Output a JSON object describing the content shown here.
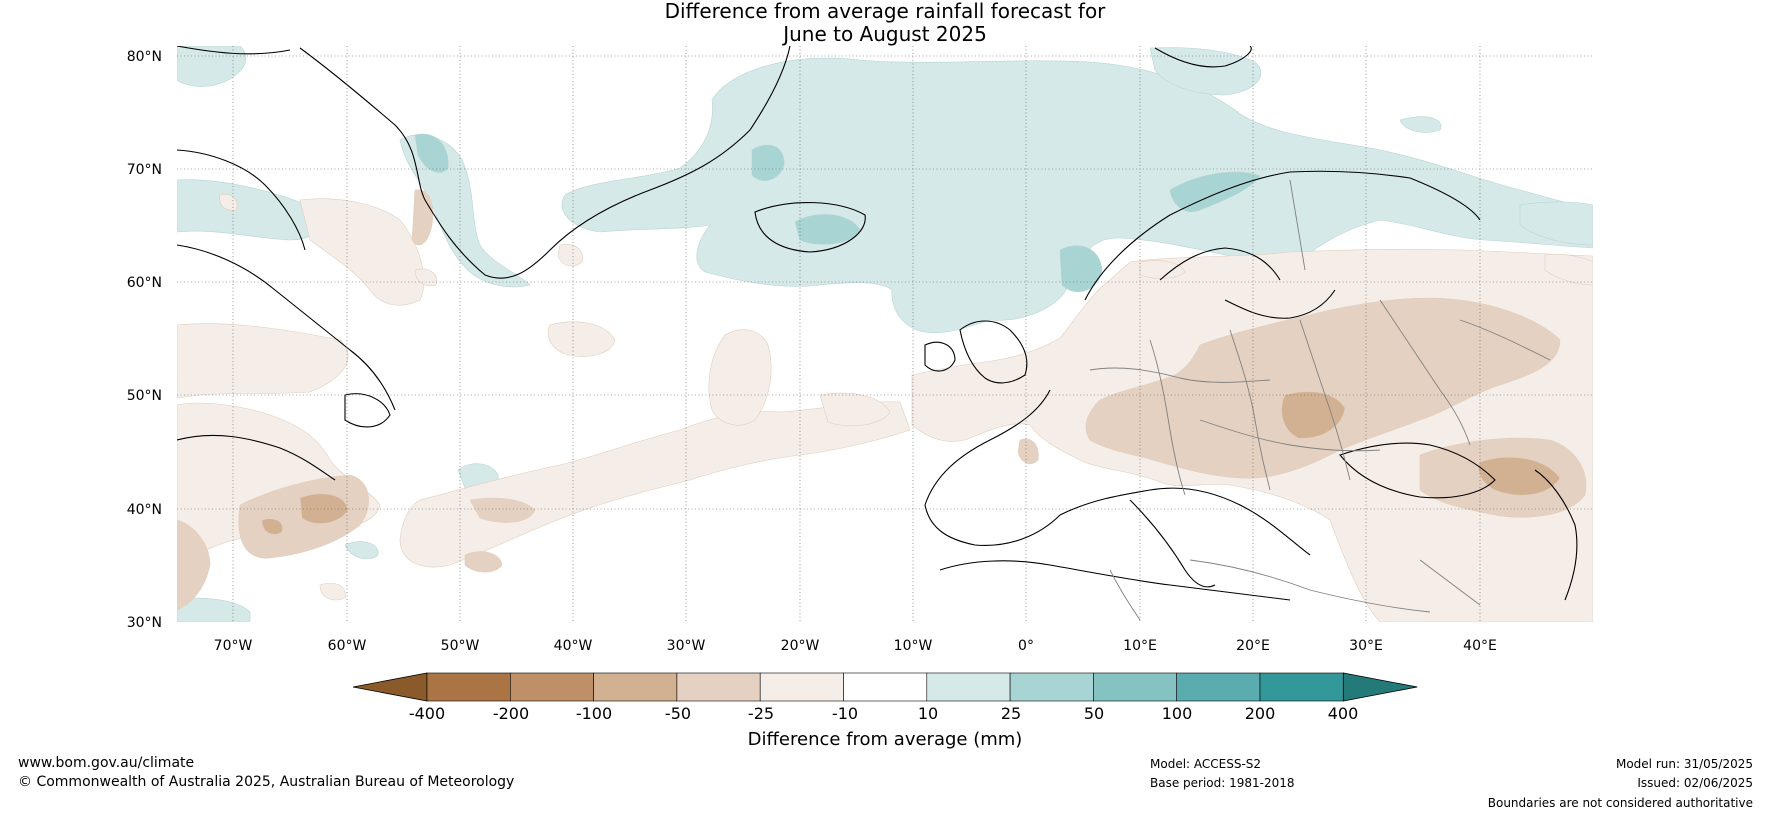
{
  "title": {
    "line1": "Difference from average rainfall forecast for",
    "line2": "June to August 2025"
  },
  "map": {
    "lat_labels": [
      "80°N",
      "70°N",
      "60°N",
      "50°N",
      "40°N",
      "30°N"
    ],
    "lon_labels": [
      "70°W",
      "60°W",
      "50°W",
      "40°W",
      "30°W",
      "20°W",
      "10°W",
      "0°",
      "10°E",
      "20°E",
      "30°E",
      "40°E"
    ],
    "extent": {
      "lon": [
        -75,
        50
      ],
      "lat": [
        30,
        81
      ]
    },
    "coastline_color": "#000000",
    "border_color": "#808080",
    "graticule": "dotted"
  },
  "colorbar": {
    "label": "Difference from average (mm)",
    "ticks": [
      "-400",
      "-200",
      "-100",
      "-50",
      "-25",
      "-10",
      "10",
      "25",
      "50",
      "100",
      "200",
      "400"
    ],
    "colors": [
      "#8b5a2b",
      "#aa7444",
      "#bf9067",
      "#d2b192",
      "#e5d1c1",
      "#f5eee8",
      "#ffffff",
      "#d6e9e9",
      "#a8d5d4",
      "#84c3c2",
      "#5aacae",
      "#33989a",
      "#247a78"
    ]
  },
  "footer": {
    "url": "www.bom.gov.au/climate",
    "copyright": "© Commonwealth of Australia 2025, Australian Bureau of Meteorology",
    "model": "Model: ACCESS-S2",
    "base_period": "Base period: 1981-2018",
    "model_run": "Model run: 31/05/2025",
    "issued": "Issued: 02/06/2025",
    "disclaimer": "Boundaries are not considered authoritative"
  }
}
